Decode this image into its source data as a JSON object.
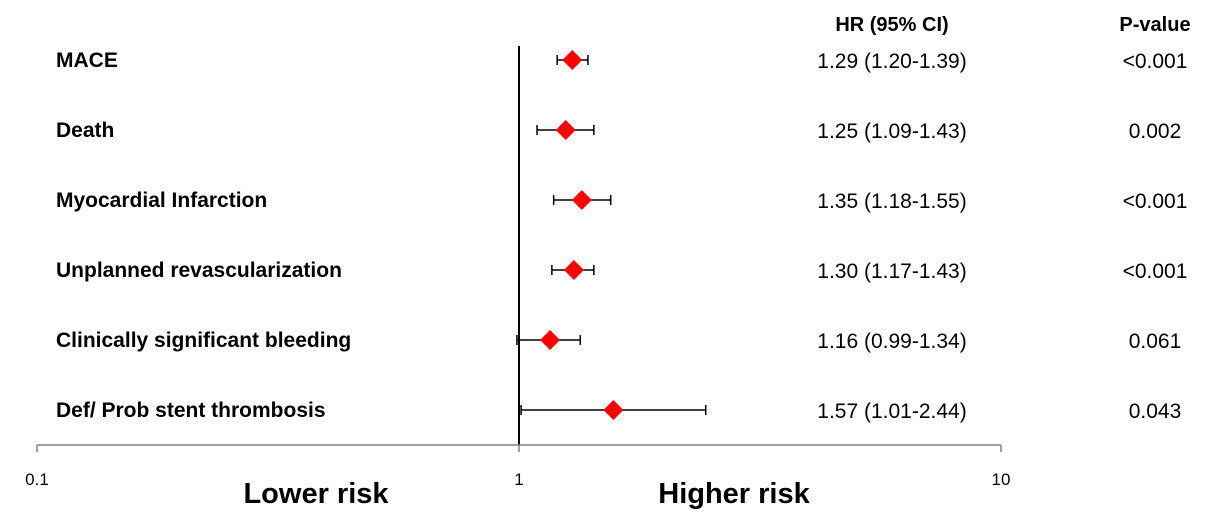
{
  "chart_data": {
    "type": "forest",
    "x_scale": "log",
    "xlim": [
      0.1,
      10
    ],
    "x_ticks": [
      "0.1",
      "1",
      "10"
    ],
    "reference_line": 1,
    "grid": false,
    "legend": "none",
    "marker_color": "#ff0000",
    "line_color": "#000000",
    "region_labels": {
      "lower": "Lower risk",
      "higher": "Higher risk"
    },
    "columns": {
      "hr": "HR (95% CI)",
      "p": "P-value"
    },
    "rows": [
      {
        "label": "MACE",
        "hr": 1.29,
        "lo": 1.2,
        "hi": 1.39,
        "hr_text": "1.29 (1.20-1.39)",
        "p": "<0.001"
      },
      {
        "label": "Death",
        "hr": 1.25,
        "lo": 1.09,
        "hi": 1.43,
        "hr_text": "1.25 (1.09-1.43)",
        "p": "0.002"
      },
      {
        "label": "Myocardial Infarction",
        "hr": 1.35,
        "lo": 1.18,
        "hi": 1.55,
        "hr_text": "1.35 (1.18-1.55)",
        "p": "<0.001"
      },
      {
        "label": "Unplanned revascularization",
        "hr": 1.3,
        "lo": 1.17,
        "hi": 1.43,
        "hr_text": "1.30 (1.17-1.43)",
        "p": "<0.001"
      },
      {
        "label": "Clinically significant bleeding",
        "hr": 1.16,
        "lo": 0.99,
        "hi": 1.34,
        "hr_text": "1.16 (0.99-1.34)",
        "p": "0.061"
      },
      {
        "label": "Def/ Prob stent thrombosis",
        "hr": 1.57,
        "lo": 1.01,
        "hi": 2.44,
        "hr_text": "1.57 (1.01-2.44)",
        "p": "0.043"
      }
    ]
  }
}
